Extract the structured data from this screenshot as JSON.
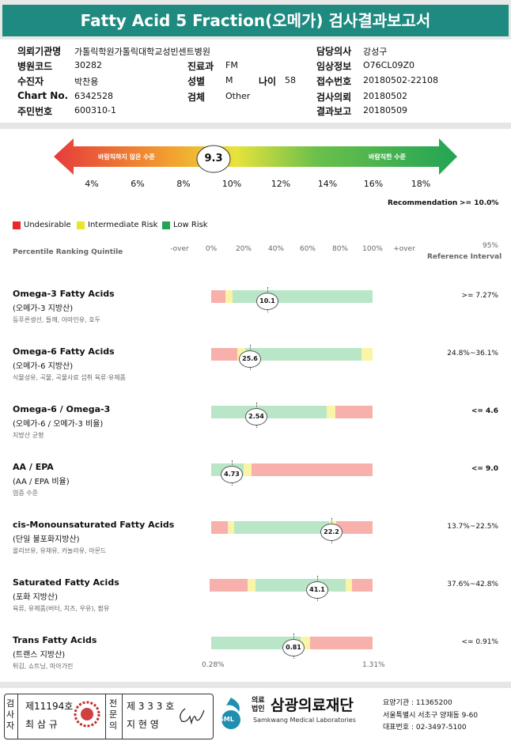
{
  "header": {
    "title": "Fatty Acid 5 Fraction(오메가) 검사결과보고서"
  },
  "info": {
    "left": [
      {
        "label": "의뢰기관명",
        "value": "가톨릭학원가톨릭대학교성빈센트병원"
      },
      {
        "label": "병원코드",
        "value": "30282"
      },
      {
        "label": "수진자",
        "value": "박찬용"
      },
      {
        "label": "Chart No.",
        "value": "6342528"
      },
      {
        "label": "주민번호",
        "value": "600310-1"
      }
    ],
    "middle": [
      {
        "label": "진료과",
        "value": "FM"
      },
      {
        "label": "성별",
        "value": "M"
      },
      {
        "label": "검체",
        "value": "Other"
      }
    ],
    "age": {
      "label": "나이",
      "value": "58"
    },
    "right": [
      {
        "label": "담당의사",
        "value": "강성구"
      },
      {
        "label": "임상정보",
        "value": "O76CL09Z0"
      },
      {
        "label": "접수번호",
        "value": "20180502-22108"
      },
      {
        "label": "검사의뢰",
        "value": "20180502"
      },
      {
        "label": "결과보고",
        "value": "20180509"
      }
    ]
  },
  "index": {
    "value": "9.3",
    "left_label": "바람직하지 않은 수준",
    "right_label": "바람직한 수준",
    "ticks": [
      "4%",
      "6%",
      "8%",
      "10%",
      "12%",
      "14%",
      "16%",
      "18%"
    ],
    "recommendation_label": "Recommendation",
    "recommendation_value": ">= 10.0%"
  },
  "legend": [
    "Undesirable",
    "Intermediate Risk",
    "Low Risk"
  ],
  "table": {
    "ranking_label": "Percentile Ranking Quintile",
    "scale": [
      "-over",
      "0%",
      "20%",
      "40%",
      "60%",
      "80%",
      "100%",
      "+over"
    ],
    "reference_header": [
      "95%",
      "Reference Interval"
    ],
    "rows": [
      {
        "name": "Omega-3 Fatty Acids",
        "korean": "(오메가-3 지방산)",
        "desc": "등푸른생선, 들깨, 아마인유, 호두",
        "value": "10.1",
        "reference": ">= 7.27%"
      },
      {
        "name": "Omega-6 Fatty Acids",
        "korean": "(오메가-6 지방산)",
        "desc": "식물성유, 곡물, 곡물사료 섭취 육류·유제품",
        "value": "25.6",
        "reference": "24.8%~36.1%"
      },
      {
        "name": "Omega-6 / Omega-3",
        "korean": "(오메가-6 / 오메가-3 비율)",
        "desc": "지방산 균형",
        "value": "2.54",
        "reference": "<= 4.6"
      },
      {
        "name": "AA / EPA",
        "korean": "(AA / EPA 비율)",
        "desc": "염증 수준",
        "value": "4.73",
        "reference": "<= 9.0"
      },
      {
        "name": "cis-Monounsaturated Fatty Acids",
        "korean": "(단일 불포화지방산)",
        "desc": "올리브유, 유채유, 카놀라유, 아몬드",
        "value": "22.2",
        "reference": "13.7%~22.5%"
      },
      {
        "name": "Saturated Fatty Acids",
        "korean": "(포화 지방산)",
        "desc": "육류, 유제품(버터, 치즈, 우유), 팜유",
        "value": "41.1",
        "reference": "37.6%~42.8%"
      },
      {
        "name": "Trans Fatty Acids",
        "korean": "(트랜스 지방산)",
        "desc": "튀김, 쇼트닝, 마아가린",
        "value": "0.81",
        "reference": "<= 0.91%",
        "min_label": "0.28%",
        "max_label": "1.31%"
      }
    ]
  },
  "footer": {
    "tester_title": "검사자",
    "tester_no": "제11194호",
    "tester_name": "최 삼 규",
    "doctor_title": "전문의",
    "doctor_no": "제 3 3 3 호",
    "doctor_name": "지 현 영",
    "logo": "SML",
    "org_type": "의료법인",
    "org_name": "삼광의료재단",
    "org_en": "Samkwang Medical Laboratories",
    "code": "요양기관 : 11365200",
    "address": "서울특별시 서초구 양재동 9-60",
    "phone": "대표번호 : 02-3497-5100"
  }
}
